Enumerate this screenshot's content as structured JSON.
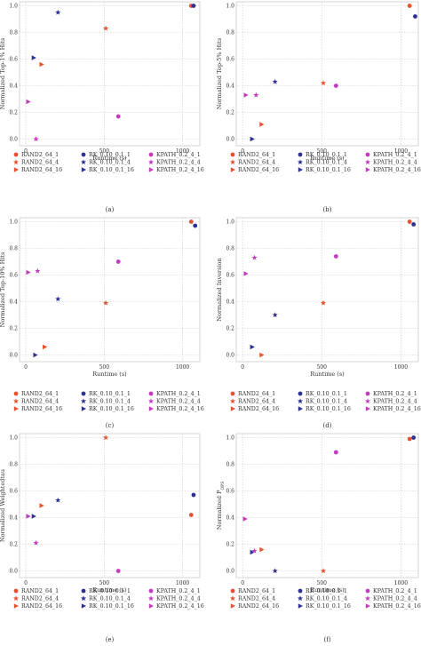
{
  "figure": {
    "series_styles": [
      {
        "name": "RAND2_64_1",
        "color": "#e8502e",
        "marker": "circle"
      },
      {
        "name": "RAND2_64_4",
        "color": "#e8502e",
        "marker": "star"
      },
      {
        "name": "RAND2_64_16",
        "color": "#e8502e",
        "marker": "triangle"
      },
      {
        "name": "RK_0.10_0.1_1",
        "color": "#2e3192",
        "marker": "circle"
      },
      {
        "name": "RK_0.10_0.1_4",
        "color": "#2e3192",
        "marker": "star"
      },
      {
        "name": "RK_0.10_0.1_16",
        "color": "#2e3192",
        "marker": "triangle"
      },
      {
        "name": "KPATH_0.2_4_1",
        "color": "#c43bbf",
        "marker": "circle"
      },
      {
        "name": "KPATH_0.2_4_4",
        "color": "#c43bbf",
        "marker": "star"
      },
      {
        "name": "KPATH_0.2_4_16",
        "color": "#c43bbf",
        "marker": "triangle"
      }
    ]
  },
  "chart_data": [
    {
      "type": "scatter",
      "panel": "(a)",
      "xlabel": "Runtime (s)",
      "ylabel": "Normalized Top-1% Hits",
      "xlim": [
        -40,
        1110
      ],
      "ylim": [
        -0.05,
        1.03
      ],
      "xticks": [
        0,
        500,
        1000
      ],
      "yticks": [
        0.0,
        0.2,
        0.4,
        0.6,
        0.8,
        1.0
      ],
      "grid": true,
      "legend": "bottom",
      "series": [
        {
          "name": "RAND2_64_1",
          "x": [
            1055
          ],
          "y": [
            1.0
          ]
        },
        {
          "name": "RAND2_64_4",
          "x": [
            510
          ],
          "y": [
            0.83
          ]
        },
        {
          "name": "RAND2_64_16",
          "x": [
            100
          ],
          "y": [
            0.56
          ]
        },
        {
          "name": "RK_0.10_0.1_1",
          "x": [
            1070
          ],
          "y": [
            1.0
          ]
        },
        {
          "name": "RK_0.10_0.1_4",
          "x": [
            205
          ],
          "y": [
            0.95
          ]
        },
        {
          "name": "RK_0.10_0.1_16",
          "x": [
            50
          ],
          "y": [
            0.61
          ]
        },
        {
          "name": "KPATH_0.2_4_1",
          "x": [
            590
          ],
          "y": [
            0.17
          ]
        },
        {
          "name": "KPATH_0.2_4_4",
          "x": [
            65
          ],
          "y": [
            0.0
          ]
        },
        {
          "name": "KPATH_0.2_4_16",
          "x": [
            15
          ],
          "y": [
            0.28
          ]
        }
      ]
    },
    {
      "type": "scatter",
      "panel": "(b)",
      "xlabel": "Runtime (s)",
      "ylabel": "Normalized Top-5% Hits",
      "xlim": [
        -40,
        1110
      ],
      "ylim": [
        -0.05,
        1.03
      ],
      "xticks": [
        0,
        500,
        1000
      ],
      "yticks": [
        0.0,
        0.2,
        0.4,
        0.6,
        0.8,
        1.0
      ],
      "grid": true,
      "legend": "bottom",
      "series": [
        {
          "name": "RAND2_64_1",
          "x": [
            1055
          ],
          "y": [
            1.0
          ]
        },
        {
          "name": "RAND2_64_4",
          "x": [
            510
          ],
          "y": [
            0.42
          ]
        },
        {
          "name": "RAND2_64_16",
          "x": [
            120
          ],
          "y": [
            0.11
          ]
        },
        {
          "name": "RK_0.10_0.1_1",
          "x": [
            1090
          ],
          "y": [
            0.92
          ]
        },
        {
          "name": "RK_0.10_0.1_4",
          "x": [
            205
          ],
          "y": [
            0.43
          ]
        },
        {
          "name": "RK_0.10_0.1_16",
          "x": [
            60
          ],
          "y": [
            0.0
          ]
        },
        {
          "name": "KPATH_0.2_4_1",
          "x": [
            590
          ],
          "y": [
            0.4
          ]
        },
        {
          "name": "KPATH_0.2_4_4",
          "x": [
            85
          ],
          "y": [
            0.33
          ]
        },
        {
          "name": "KPATH_0.2_4_16",
          "x": [
            20
          ],
          "y": [
            0.33
          ]
        }
      ]
    },
    {
      "type": "scatter",
      "panel": "(c)",
      "xlabel": "Runtime (s)",
      "ylabel": "Normalized Top-10% Hits",
      "xlim": [
        -40,
        1110
      ],
      "ylim": [
        -0.05,
        1.03
      ],
      "xticks": [
        0,
        500,
        1000
      ],
      "yticks": [
        0.0,
        0.2,
        0.4,
        0.6,
        0.8,
        1.0
      ],
      "grid": true,
      "legend": "bottom",
      "series": [
        {
          "name": "RAND2_64_1",
          "x": [
            1055
          ],
          "y": [
            1.0
          ]
        },
        {
          "name": "RAND2_64_4",
          "x": [
            510
          ],
          "y": [
            0.39
          ]
        },
        {
          "name": "RAND2_64_16",
          "x": [
            120
          ],
          "y": [
            0.06
          ]
        },
        {
          "name": "RK_0.10_0.1_1",
          "x": [
            1080
          ],
          "y": [
            0.97
          ]
        },
        {
          "name": "RK_0.10_0.1_4",
          "x": [
            205
          ],
          "y": [
            0.42
          ]
        },
        {
          "name": "RK_0.10_0.1_16",
          "x": [
            60
          ],
          "y": [
            0.0
          ]
        },
        {
          "name": "KPATH_0.2_4_1",
          "x": [
            590
          ],
          "y": [
            0.7
          ]
        },
        {
          "name": "KPATH_0.2_4_4",
          "x": [
            75
          ],
          "y": [
            0.63
          ]
        },
        {
          "name": "KPATH_0.2_4_16",
          "x": [
            15
          ],
          "y": [
            0.62
          ]
        }
      ]
    },
    {
      "type": "scatter",
      "panel": "(d)",
      "xlabel": "Runtime (s)",
      "ylabel": "Normalized Inversion",
      "xlim": [
        -40,
        1110
      ],
      "ylim": [
        -0.05,
        1.03
      ],
      "xticks": [
        0,
        500,
        1000
      ],
      "yticks": [
        0.0,
        0.2,
        0.4,
        0.6,
        0.8,
        1.0
      ],
      "grid": true,
      "legend": "bottom",
      "series": [
        {
          "name": "RAND2_64_1",
          "x": [
            1055
          ],
          "y": [
            1.0
          ]
        },
        {
          "name": "RAND2_64_4",
          "x": [
            510
          ],
          "y": [
            0.39
          ]
        },
        {
          "name": "RAND2_64_16",
          "x": [
            120
          ],
          "y": [
            0.0
          ]
        },
        {
          "name": "RK_0.10_0.1_1",
          "x": [
            1080
          ],
          "y": [
            0.98
          ]
        },
        {
          "name": "RK_0.10_0.1_4",
          "x": [
            205
          ],
          "y": [
            0.3
          ]
        },
        {
          "name": "RK_0.10_0.1_16",
          "x": [
            60
          ],
          "y": [
            0.06
          ]
        },
        {
          "name": "KPATH_0.2_4_1",
          "x": [
            590
          ],
          "y": [
            0.74
          ]
        },
        {
          "name": "KPATH_0.2_4_4",
          "x": [
            75
          ],
          "y": [
            0.73
          ]
        },
        {
          "name": "KPATH_0.2_4_16",
          "x": [
            20
          ],
          "y": [
            0.61
          ]
        }
      ]
    },
    {
      "type": "scatter",
      "panel": "(e)",
      "xlabel": "Runtime (s)",
      "ylabel": "Normalized Weightedtau",
      "xlim": [
        -40,
        1110
      ],
      "ylim": [
        -0.05,
        1.03
      ],
      "xticks": [
        0,
        500,
        1000
      ],
      "yticks": [
        0.0,
        0.2,
        0.4,
        0.6,
        0.8,
        1.0
      ],
      "grid": true,
      "legend": "bottom",
      "series": [
        {
          "name": "RAND2_64_1",
          "x": [
            1055
          ],
          "y": [
            0.42
          ]
        },
        {
          "name": "RAND2_64_4",
          "x": [
            510
          ],
          "y": [
            1.0
          ]
        },
        {
          "name": "RAND2_64_16",
          "x": [
            100
          ],
          "y": [
            0.49
          ]
        },
        {
          "name": "RK_0.10_0.1_1",
          "x": [
            1070
          ],
          "y": [
            0.57
          ]
        },
        {
          "name": "RK_0.10_0.1_4",
          "x": [
            205
          ],
          "y": [
            0.53
          ]
        },
        {
          "name": "RK_0.10_0.1_16",
          "x": [
            50
          ],
          "y": [
            0.41
          ]
        },
        {
          "name": "KPATH_0.2_4_1",
          "x": [
            590
          ],
          "y": [
            0.0
          ]
        },
        {
          "name": "KPATH_0.2_4_4",
          "x": [
            65
          ],
          "y": [
            0.21
          ]
        },
        {
          "name": "KPATH_0.2_4_16",
          "x": [
            15
          ],
          "y": [
            0.41
          ]
        }
      ]
    },
    {
      "type": "scatter",
      "panel": "(f)",
      "xlabel": "Runtime (s)",
      "ylabel": "Normalized P_OPS",
      "xlim": [
        -40,
        1110
      ],
      "ylim": [
        -0.05,
        1.03
      ],
      "xticks": [
        0,
        500,
        1000
      ],
      "yticks": [
        0.0,
        0.2,
        0.4,
        0.6,
        0.8,
        1.0
      ],
      "grid": true,
      "legend": "bottom",
      "series": [
        {
          "name": "RAND2_64_1",
          "x": [
            1055
          ],
          "y": [
            0.99
          ]
        },
        {
          "name": "RAND2_64_4",
          "x": [
            510
          ],
          "y": [
            0.0
          ]
        },
        {
          "name": "RAND2_64_16",
          "x": [
            120
          ],
          "y": [
            0.16
          ]
        },
        {
          "name": "RK_0.10_0.1_1",
          "x": [
            1080
          ],
          "y": [
            1.0
          ]
        },
        {
          "name": "RK_0.10_0.1_4",
          "x": [
            205
          ],
          "y": [
            0.0
          ]
        },
        {
          "name": "RK_0.10_0.1_16",
          "x": [
            60
          ],
          "y": [
            0.14
          ]
        },
        {
          "name": "KPATH_0.2_4_1",
          "x": [
            590
          ],
          "y": [
            0.89
          ]
        },
        {
          "name": "KPATH_0.2_4_4",
          "x": [
            75
          ],
          "y": [
            0.15
          ]
        },
        {
          "name": "KPATH_0.2_4_16",
          "x": [
            15
          ],
          "y": [
            0.39
          ]
        }
      ]
    }
  ]
}
